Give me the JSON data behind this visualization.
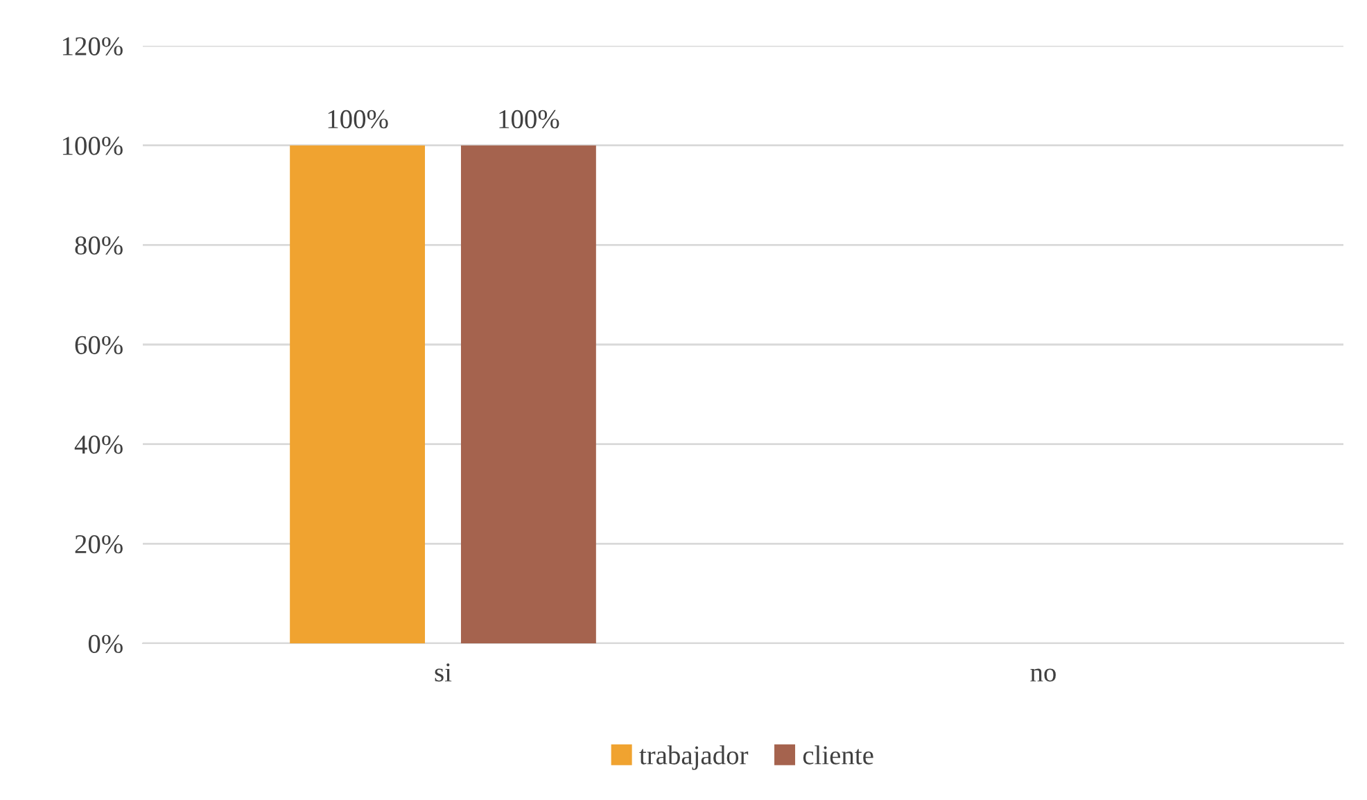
{
  "chart_data": {
    "type": "bar",
    "categories": [
      "si",
      "no"
    ],
    "series": [
      {
        "name": "trabajador",
        "color": "#f0a330",
        "values": [
          100,
          0
        ],
        "value_labels": [
          "100%",
          null
        ]
      },
      {
        "name": "cliente",
        "color": "#a5634e",
        "values": [
          100,
          0
        ],
        "value_labels": [
          "100%",
          null
        ]
      }
    ],
    "ylim": [
      0,
      120
    ],
    "yticks": [
      {
        "value": 0,
        "label": "0%"
      },
      {
        "value": 20,
        "label": "20%"
      },
      {
        "value": 40,
        "label": "40%"
      },
      {
        "value": 60,
        "label": "60%"
      },
      {
        "value": 80,
        "label": "80%"
      },
      {
        "value": 100,
        "label": "100%"
      },
      {
        "value": 120,
        "label": "120%"
      }
    ],
    "grid": "y",
    "legend": "bottom"
  }
}
